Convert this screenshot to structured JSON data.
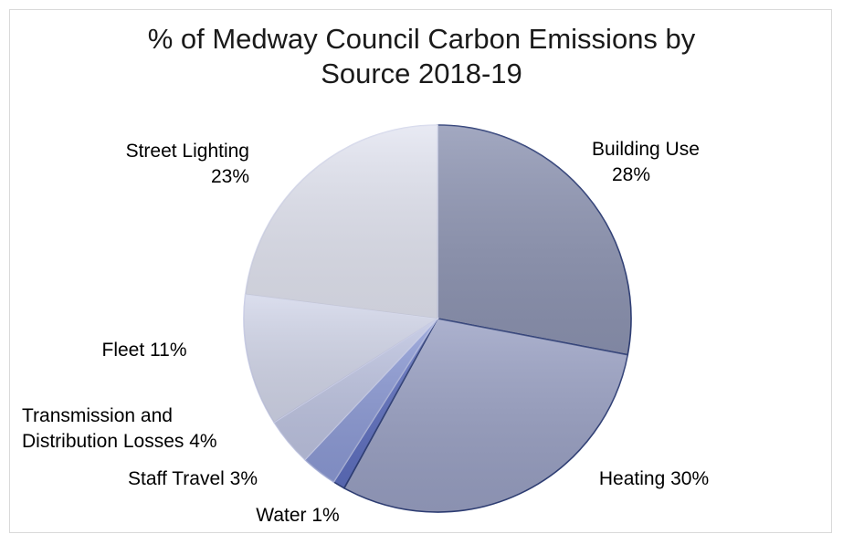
{
  "chart_data": {
    "type": "pie",
    "title_line1": "% of Medway Council Carbon Emissions by",
    "title_line2": "Source 2018-19",
    "categories": [
      "Building Use",
      "Heating",
      "Water",
      "Staff Travel",
      "Transmission and Distribution Losses",
      "Fleet",
      "Street Lighting"
    ],
    "values": [
      28,
      30,
      1,
      3,
      4,
      11,
      23
    ],
    "unit": "%",
    "labels": [
      [
        "Building Use",
        "28%"
      ],
      [
        "Heating 30%"
      ],
      [
        "Water  1%"
      ],
      [
        "Staff Travel  3%"
      ],
      [
        "Transmission and",
        "Distribution Losses  4%"
      ],
      [
        "Fleet 11%"
      ],
      [
        "Street Lighting",
        "23%"
      ]
    ],
    "colors": [
      "#8e95b3",
      "#9aa1c4",
      "#5f70c0",
      "#8d9bd6",
      "#bfc5e2",
      "#d3d7ea",
      "#e3e5f1"
    ],
    "legend": "none"
  }
}
